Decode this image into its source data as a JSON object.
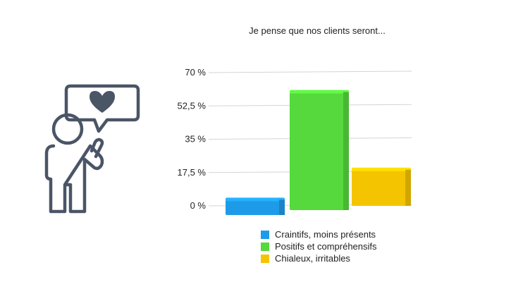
{
  "chart_data": {
    "type": "bar",
    "title": "Je pense que nos clients seront...",
    "ylim": [
      0,
      70
    ],
    "yticks": [
      "70 %",
      "52,5 %",
      "35 %",
      "17,5 %",
      "0 %"
    ],
    "ytick_values": [
      70,
      52.5,
      35,
      17.5,
      0
    ],
    "grid": true,
    "legend_position": "bottom",
    "series": [
      {
        "name": "Craintifs, moins présents",
        "value": 8,
        "color": "#1e9be8"
      },
      {
        "name": "Positifs et compréhensifs",
        "value": 62,
        "color": "#55d93c"
      },
      {
        "name": "Chialeux, irritables",
        "value": 19,
        "color": "#f5c400"
      }
    ]
  },
  "illustration": {
    "icon": "person-with-heart-speech-bubble-icon",
    "color": "#4a5566"
  }
}
